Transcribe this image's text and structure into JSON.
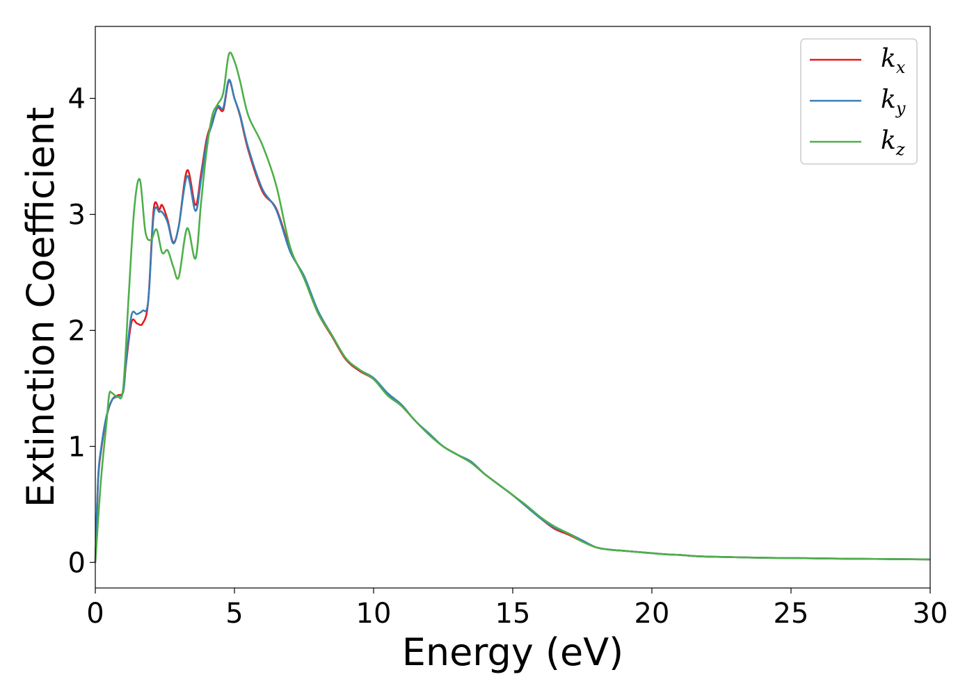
{
  "chart_data": {
    "type": "line",
    "xlabel": "Energy (eV)",
    "ylabel": "Extinction Coefficient",
    "xlim": [
      0,
      30
    ],
    "ylim": [
      -0.22,
      4.62
    ],
    "xticks": [
      0,
      5,
      10,
      15,
      20,
      25,
      30
    ],
    "yticks": [
      0,
      1,
      2,
      3,
      4
    ],
    "xtick_labels": [
      "0",
      "5",
      "10",
      "15",
      "20",
      "25",
      "30"
    ],
    "ytick_labels": [
      "0",
      "1",
      "2",
      "3",
      "4"
    ],
    "grid": false,
    "legend_position": "top-right",
    "series": [
      {
        "name": "k_x",
        "legend_base": "k",
        "legend_sub": "x",
        "color": "#e41a1c",
        "x": [
          0,
          0.1,
          0.2,
          0.4,
          0.6,
          0.8,
          1.0,
          1.1,
          1.3,
          1.5,
          1.7,
          1.9,
          2.1,
          2.3,
          2.4,
          2.6,
          2.8,
          3.0,
          3.3,
          3.6,
          3.8,
          4.0,
          4.2,
          4.4,
          4.6,
          4.8,
          5.0,
          5.2,
          5.5,
          6.0,
          6.5,
          7.0,
          7.5,
          8.0,
          8.5,
          9.0,
          9.5,
          10.0,
          10.5,
          11.0,
          11.5,
          12.0,
          12.5,
          13.0,
          13.5,
          14.0,
          14.5,
          15.0,
          15.5,
          16.0,
          16.5,
          17.0,
          17.5,
          18.0,
          18.5,
          19.0,
          19.5,
          20.0,
          20.5,
          21.0,
          21.5,
          22.0,
          23.0,
          24.0,
          25.0,
          26.0,
          27.0,
          28.0,
          29.0,
          30.0
        ],
        "y": [
          0.0,
          0.7,
          0.95,
          1.25,
          1.4,
          1.44,
          1.47,
          1.7,
          2.07,
          2.06,
          2.06,
          2.25,
          3.05,
          3.04,
          3.08,
          2.95,
          2.76,
          2.9,
          3.38,
          3.08,
          3.35,
          3.65,
          3.8,
          3.92,
          3.9,
          4.15,
          4.0,
          3.85,
          3.55,
          3.2,
          3.05,
          2.7,
          2.45,
          2.15,
          1.95,
          1.75,
          1.65,
          1.58,
          1.45,
          1.35,
          1.22,
          1.1,
          1.0,
          0.93,
          0.86,
          0.76,
          0.67,
          0.58,
          0.48,
          0.38,
          0.29,
          0.24,
          0.18,
          0.13,
          0.11,
          0.1,
          0.09,
          0.08,
          0.07,
          0.065,
          0.055,
          0.05,
          0.045,
          0.04,
          0.038,
          0.035,
          0.032,
          0.03,
          0.028,
          0.026
        ]
      },
      {
        "name": "k_y",
        "legend_base": "k",
        "legend_sub": "y",
        "color": "#377eb8",
        "x": [
          0,
          0.1,
          0.2,
          0.4,
          0.6,
          0.8,
          1.0,
          1.1,
          1.3,
          1.5,
          1.7,
          1.9,
          2.1,
          2.3,
          2.4,
          2.6,
          2.8,
          3.0,
          3.3,
          3.6,
          3.8,
          4.0,
          4.2,
          4.4,
          4.6,
          4.8,
          5.0,
          5.2,
          5.5,
          6.0,
          6.5,
          7.0,
          7.5,
          8.0,
          8.5,
          9.0,
          9.5,
          10.0,
          10.5,
          11.0,
          11.5,
          12.0,
          12.5,
          13.0,
          13.5,
          14.0,
          14.5,
          15.0,
          15.5,
          16.0,
          16.5,
          17.0,
          17.5,
          18.0,
          18.5,
          19.0,
          19.5,
          20.0,
          20.5,
          21.0,
          21.5,
          22.0,
          23.0,
          24.0,
          25.0,
          26.0,
          27.0,
          28.0,
          29.0,
          30.0
        ],
        "y": [
          0.0,
          0.72,
          0.97,
          1.26,
          1.4,
          1.43,
          1.47,
          1.72,
          2.13,
          2.14,
          2.17,
          2.25,
          3.0,
          3.02,
          3.02,
          2.93,
          2.75,
          2.9,
          3.33,
          3.03,
          3.3,
          3.62,
          3.78,
          3.93,
          3.92,
          4.16,
          4.0,
          3.86,
          3.57,
          3.22,
          3.04,
          2.68,
          2.47,
          2.17,
          1.96,
          1.76,
          1.66,
          1.59,
          1.46,
          1.36,
          1.22,
          1.11,
          1.0,
          0.93,
          0.87,
          0.76,
          0.67,
          0.58,
          0.48,
          0.38,
          0.3,
          0.25,
          0.19,
          0.13,
          0.11,
          0.1,
          0.09,
          0.08,
          0.07,
          0.065,
          0.055,
          0.05,
          0.045,
          0.04,
          0.038,
          0.035,
          0.032,
          0.03,
          0.028,
          0.026
        ]
      },
      {
        "name": "k_z",
        "legend_base": "k",
        "legend_sub": "z",
        "color": "#4daf4a",
        "x": [
          0,
          0.2,
          0.4,
          0.5,
          0.6,
          0.8,
          1.0,
          1.2,
          1.4,
          1.6,
          1.8,
          2.0,
          2.2,
          2.4,
          2.6,
          2.8,
          3.0,
          3.3,
          3.6,
          3.8,
          4.0,
          4.2,
          4.4,
          4.6,
          4.8,
          5.0,
          5.2,
          5.5,
          6.0,
          6.5,
          7.0,
          7.5,
          8.0,
          8.5,
          9.0,
          9.5,
          10.0,
          10.5,
          11.0,
          11.5,
          12.0,
          12.5,
          13.0,
          13.5,
          14.0,
          14.5,
          15.0,
          15.5,
          16.0,
          16.5,
          17.0,
          17.5,
          18.0,
          18.5,
          19.0,
          19.5,
          20.0,
          20.5,
          21.0,
          21.5,
          22.0,
          23.0,
          24.0,
          25.0,
          26.0,
          27.0,
          28.0,
          29.0,
          30.0
        ],
        "y": [
          0.0,
          0.7,
          1.2,
          1.45,
          1.46,
          1.43,
          1.5,
          2.3,
          3.05,
          3.3,
          2.85,
          2.78,
          2.87,
          2.67,
          2.69,
          2.55,
          2.46,
          2.88,
          2.62,
          3.1,
          3.55,
          3.85,
          3.95,
          4.05,
          4.38,
          4.32,
          4.15,
          3.85,
          3.6,
          3.25,
          2.72,
          2.45,
          2.15,
          1.96,
          1.76,
          1.66,
          1.58,
          1.44,
          1.35,
          1.22,
          1.1,
          1.0,
          0.93,
          0.86,
          0.76,
          0.67,
          0.58,
          0.49,
          0.39,
          0.31,
          0.25,
          0.18,
          0.13,
          0.11,
          0.1,
          0.09,
          0.08,
          0.07,
          0.065,
          0.055,
          0.05,
          0.045,
          0.04,
          0.038,
          0.035,
          0.032,
          0.03,
          0.028,
          0.026
        ]
      }
    ]
  }
}
